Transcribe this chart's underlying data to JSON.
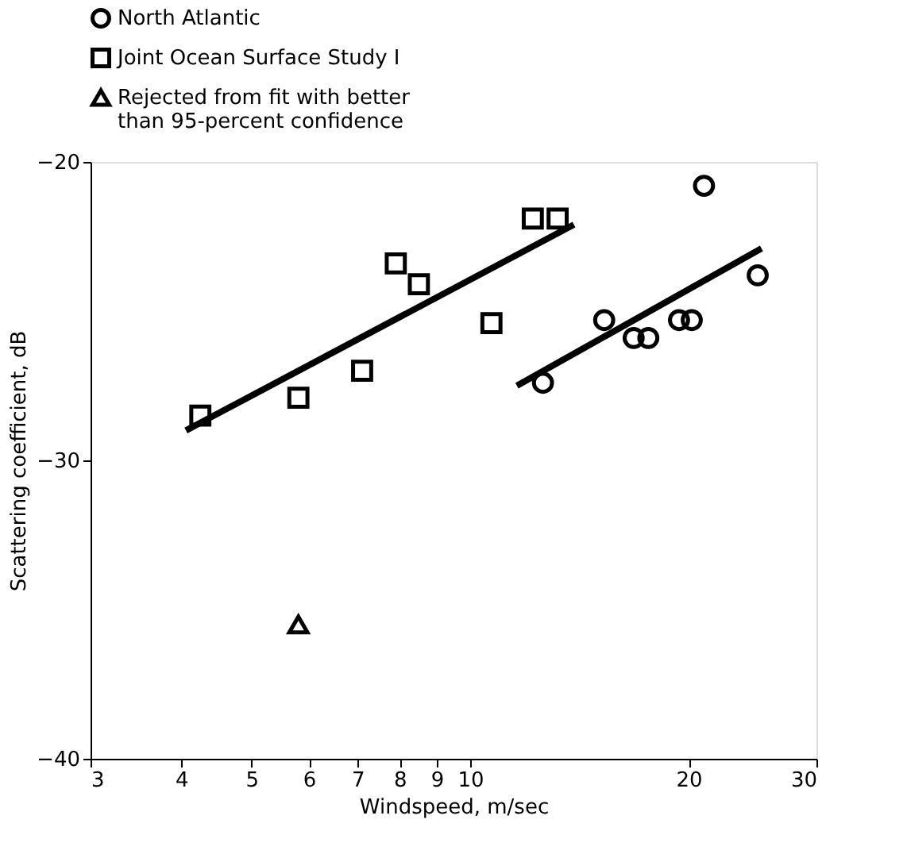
{
  "chart_data": {
    "type": "scatter",
    "xlabel": "Windspeed, m/sec",
    "ylabel": "Scattering coefficient, dB",
    "log": "x",
    "xlim": [
      3,
      30
    ],
    "xticks": [
      3,
      4,
      5,
      6,
      7,
      8,
      9,
      10,
      20,
      30
    ],
    "ylim": [
      -40,
      -20
    ],
    "yticks": [
      -40,
      -30,
      -20
    ],
    "grid": false,
    "legend": "top",
    "series": [
      {
        "name": "North Atlantic",
        "color": "#000000",
        "marker": "circle",
        "x": [
          12.6,
          15.3,
          16.8,
          17.6,
          19.4,
          20.2,
          21.0,
          24.9
        ],
        "values": [
          -27.4,
          -25.3,
          -25.9,
          -25.9,
          -25.3,
          -25.3,
          -20.8,
          -23.8
        ]
      },
      {
        "name": "Joint Ocean Surface Study I",
        "color": "#000000",
        "marker": "square",
        "x": [
          4.25,
          5.8,
          7.1,
          7.9,
          8.5,
          10.7,
          12.2,
          13.2
        ],
        "values": [
          -28.5,
          -27.9,
          -27.0,
          -23.4,
          -24.1,
          -25.4,
          -21.9,
          -21.9
        ]
      },
      {
        "name": "Rejected from fit with better\nthan 95-percent confidence",
        "color": "#000000",
        "marker": "triangle",
        "x": [
          5.8
        ],
        "values": [
          -35.5
        ]
      },
      {
        "type": "line",
        "color": "#000000",
        "line_style": "solid",
        "x": [
          4.06,
          13.9
        ],
        "values": [
          -29.0,
          -22.1
        ]
      },
      {
        "type": "line",
        "color": "#000000",
        "line_style": "solid",
        "x": [
          11.6,
          25.2
        ],
        "values": [
          -27.5,
          -22.9
        ]
      }
    ]
  }
}
